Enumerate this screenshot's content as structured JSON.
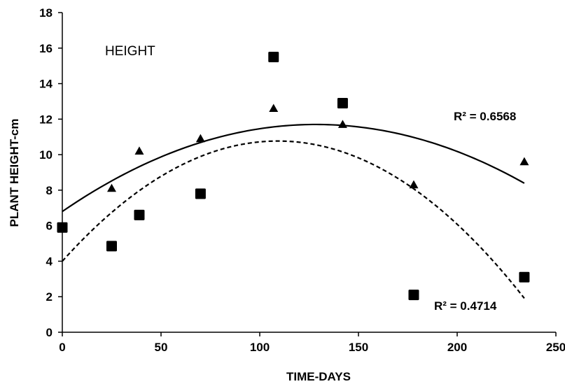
{
  "chart_data": {
    "type": "scatter",
    "title": "HEIGHT",
    "xlabel": "TIME-DAYS",
    "ylabel": "PLANT HEIGHT-cm",
    "xlim": [
      0,
      250
    ],
    "ylim": [
      0,
      18
    ],
    "x_ticks": [
      0,
      50,
      100,
      150,
      200,
      250
    ],
    "y_ticks": [
      0,
      2,
      4,
      6,
      8,
      10,
      12,
      14,
      16,
      18
    ],
    "grid": false,
    "legend": "none",
    "series": [
      {
        "marker": "triangle",
        "color": "#000000",
        "points": [
          [
            25,
            8.1
          ],
          [
            39,
            10.2
          ],
          [
            70,
            10.9
          ],
          [
            107,
            12.6
          ],
          [
            142,
            11.7
          ],
          [
            178,
            8.3
          ],
          [
            234,
            9.6
          ]
        ],
        "trendline": {
          "type": "polynomial-2",
          "style": "solid",
          "x_start": 0,
          "x_end": 234,
          "coefficients": [
            6.8,
            0.0763,
            -0.000297
          ],
          "r2_label": "R² = 0.6568"
        }
      },
      {
        "marker": "square",
        "color": "#000000",
        "points": [
          [
            0,
            5.9
          ],
          [
            25,
            4.85
          ],
          [
            39,
            6.6
          ],
          [
            70,
            7.8
          ],
          [
            107,
            15.5
          ],
          [
            142,
            12.9
          ],
          [
            178,
            2.1
          ],
          [
            234,
            3.1
          ]
        ],
        "trendline": {
          "type": "polynomial-2",
          "style": "dashed",
          "x_start": 0,
          "x_end": 234,
          "coefficients": [
            4.0,
            0.124,
            -0.000568
          ],
          "r2_label": "R² = 0.4714"
        }
      }
    ]
  }
}
